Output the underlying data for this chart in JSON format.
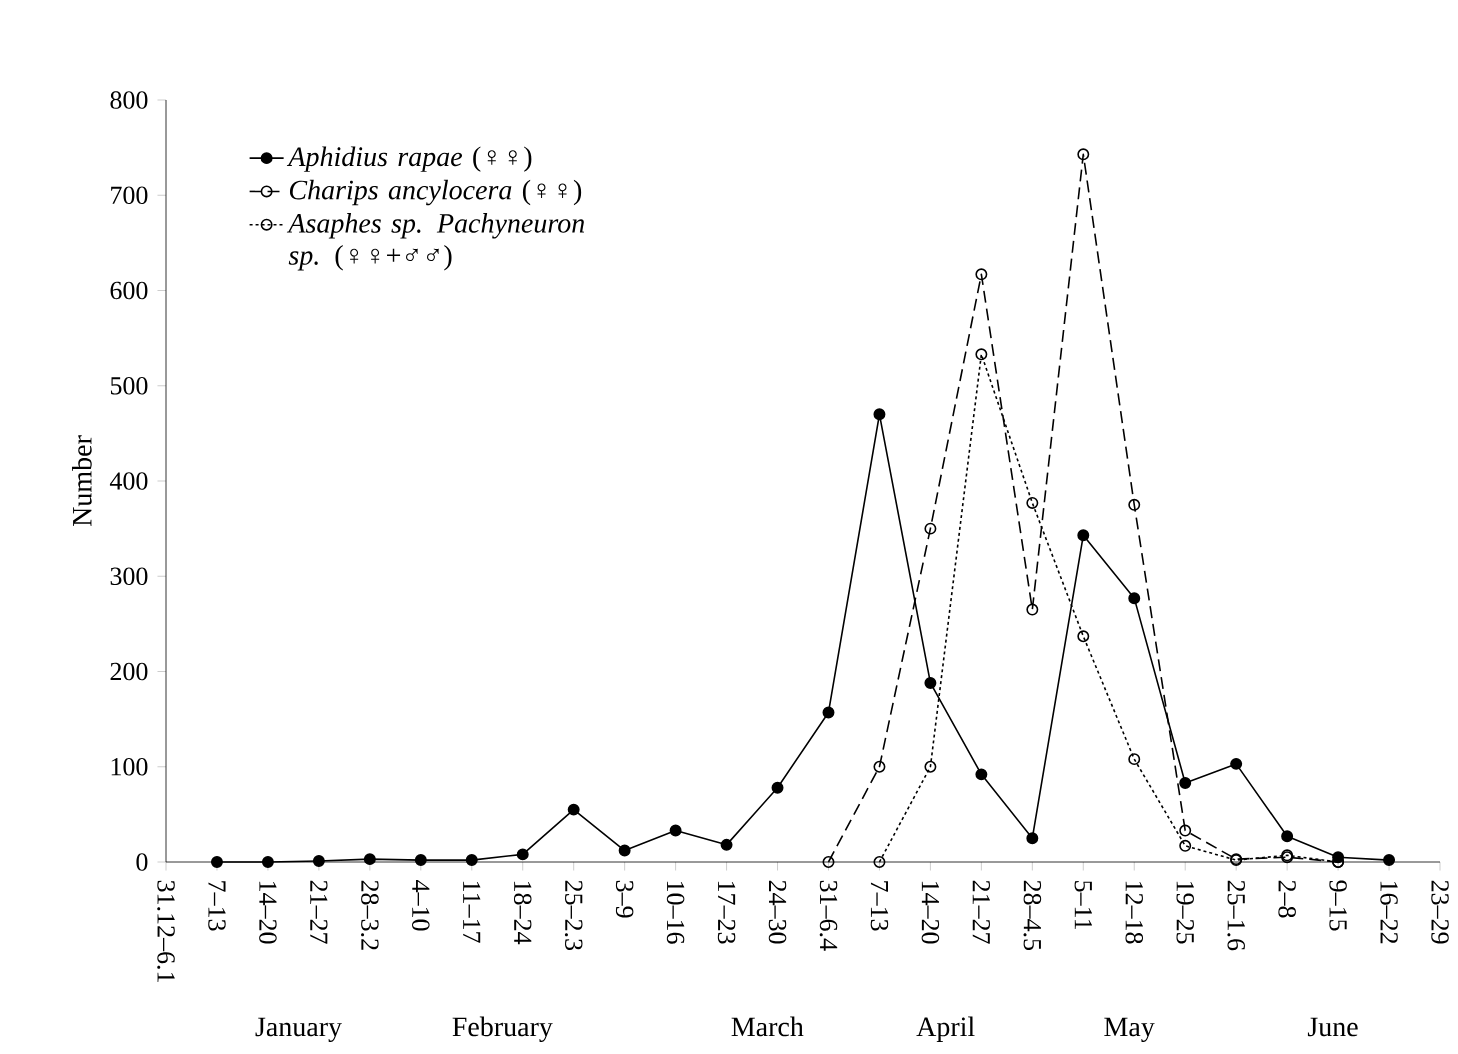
{
  "chart_data": {
    "type": "line",
    "ylabel": "Number",
    "categories": [
      "31.12–6.1",
      "7–13",
      "14–20",
      "21–27",
      "28–3.2",
      "4–10",
      "11–17",
      "18–24",
      "25–2.3",
      "3–9",
      "10–16",
      "17–23",
      "24–30",
      "31–6.4",
      "7–13",
      "14–20",
      "21–27",
      "28–4.5",
      "5–11",
      "12–18",
      "19–25",
      "25–1.6",
      "2–8",
      "9–15",
      "16–22",
      "23–29"
    ],
    "series": [
      {
        "name": "*Aphidius rapae* (♀♀)",
        "color": "#000000",
        "line_style": "solid",
        "marker": "circle",
        "values": [
          null,
          0,
          0,
          1,
          3,
          2,
          2,
          8,
          55,
          12,
          33,
          18,
          78,
          157,
          470,
          188,
          92,
          25,
          343,
          277,
          83,
          103,
          27,
          5,
          2,
          null
        ]
      },
      {
        "name": "*Charips ancylocera* (♀♀)",
        "color": "#000000",
        "line_style": "dashed",
        "marker": "circle",
        "values": [
          null,
          null,
          null,
          null,
          null,
          null,
          null,
          null,
          null,
          null,
          null,
          null,
          null,
          0,
          100,
          350,
          617,
          265,
          743,
          375,
          33,
          3,
          5,
          0,
          null,
          null
        ]
      },
      {
        "name": "*Asaphes sp. Pachyneuron sp.* (♀♀+♂♂)",
        "color": "#000000",
        "line_style": "dotted",
        "marker": "circle",
        "values": [
          null,
          null,
          null,
          null,
          null,
          null,
          null,
          null,
          null,
          null,
          null,
          null,
          null,
          null,
          0,
          100,
          533,
          377,
          237,
          108,
          17,
          2,
          7,
          0,
          null,
          null
        ]
      }
    ],
    "annotations": [
      "January",
      "February",
      "March",
      "April",
      "May",
      "June"
    ],
    "ylim": [
      0,
      800
    ],
    "yticks": [
      0,
      100,
      200,
      300,
      400,
      500,
      600,
      700,
      800
    ],
    "grid": false,
    "legend": "top left"
  }
}
